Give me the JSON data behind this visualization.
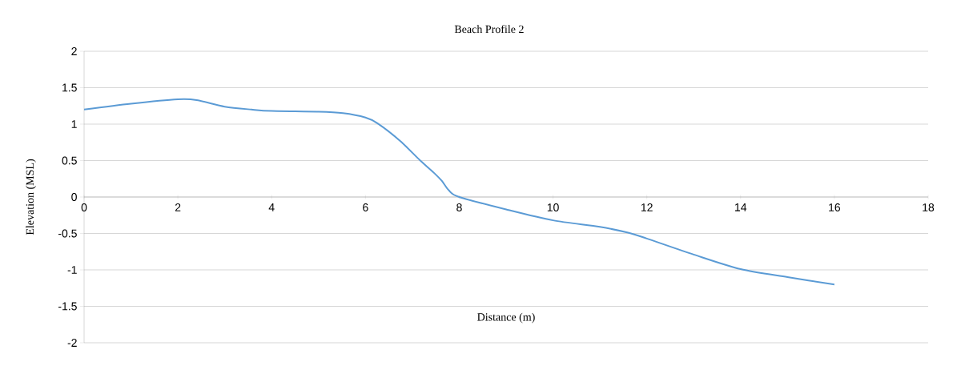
{
  "chart_data": {
    "type": "line",
    "title": "Beach Profile  2",
    "xlabel": "Distance (m)",
    "ylabel": "Elevation (MSL)",
    "xlim": [
      0,
      18
    ],
    "xticks": [
      0,
      2,
      4,
      6,
      8,
      10,
      12,
      14,
      16,
      18
    ],
    "ylim": [
      -2,
      2
    ],
    "yticks": [
      -2,
      -1.5,
      -1,
      -0.5,
      0,
      0.5,
      1,
      1.5,
      2
    ],
    "grid": "y",
    "marker": "none",
    "line_style": "solid",
    "series": [
      {
        "color": "#5b9bd5",
        "x": [
          0,
          1,
          2,
          2.4,
          3,
          3.57,
          4,
          5,
          5.52,
          6,
          6.26,
          6.74,
          7.17,
          7.48,
          7.63,
          7.78,
          8,
          9,
          10,
          11,
          11.6,
          12,
          13,
          14,
          15,
          16
        ],
        "values": [
          1.2,
          1.28,
          1.34,
          1.33,
          1.24,
          1.2,
          1.18,
          1.17,
          1.15,
          1.09,
          1.01,
          0.77,
          0.5,
          0.32,
          0.22,
          0.09,
          0,
          -0.17,
          -0.32,
          -0.41,
          -0.49,
          -0.57,
          -0.79,
          -0.99,
          -1.1,
          -1.2
        ]
      }
    ]
  }
}
